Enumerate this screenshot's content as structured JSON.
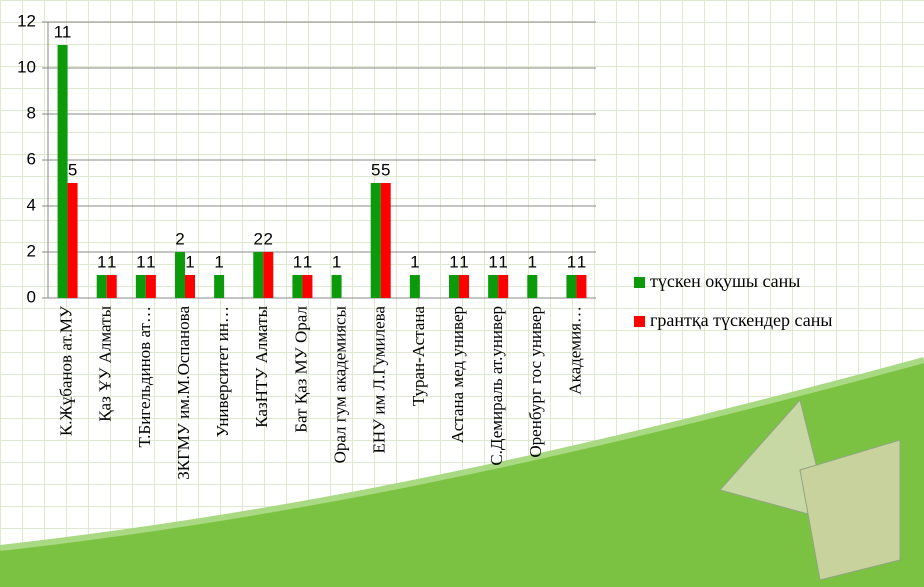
{
  "chart_data": {
    "type": "bar",
    "categories": [
      "К.Жұбанов ат.МУ",
      "Қаз ҰУ Алматы",
      "Т.Бигельдинов ат…",
      "ЗКГМУ им.М.Оспанова",
      "Университет ин…",
      "КазНТУ Алматы",
      "Бат Қаз МУ Орал",
      "Орал гум академиясы",
      "ЕНУ им Л.Гумилева",
      "Туран-Астана",
      "Астана мед универ",
      "С.Демираль ат.универ",
      "Оренбург гос универ",
      "Академия…"
    ],
    "series": [
      {
        "name": "түскен оқушы саны",
        "color": "#0a9a0a",
        "values": [
          11,
          1,
          1,
          2,
          1,
          2,
          1,
          1,
          5,
          1,
          1,
          1,
          1,
          1
        ]
      },
      {
        "name": "грантқа түскендер саны",
        "color": "#ff0000",
        "values": [
          5,
          1,
          1,
          1,
          null,
          2,
          1,
          null,
          5,
          null,
          1,
          1,
          null,
          1
        ]
      }
    ],
    "ylim": [
      0,
      12
    ],
    "yticks": [
      0,
      2,
      4,
      6,
      8,
      10,
      12
    ],
    "grid": true,
    "legend": "right"
  }
}
